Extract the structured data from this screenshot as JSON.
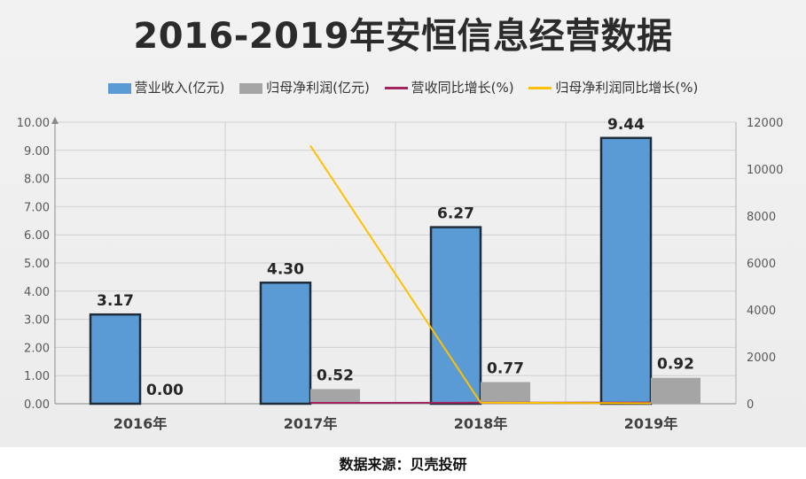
{
  "chart_data": {
    "type": "bar",
    "title": "2016-2019年安恒信息经营数据",
    "categories": [
      "2016年",
      "2017年",
      "2018年",
      "2019年"
    ],
    "series": [
      {
        "name": "营业收入(亿元)",
        "type": "bar",
        "axis": "left",
        "color": "#5b9bd5",
        "values": [
          3.17,
          4.3,
          6.27,
          9.44
        ],
        "labels": [
          "3.17",
          "4.30",
          "6.27",
          "9.44"
        ]
      },
      {
        "name": "归母净利润(亿元)",
        "type": "bar",
        "axis": "left",
        "color": "#a5a5a5",
        "values": [
          0.0,
          0.52,
          0.77,
          0.92
        ],
        "labels": [
          "0.00",
          "0.52",
          "0.77",
          "0.92"
        ]
      },
      {
        "name": "营收同比增长(%)",
        "type": "line",
        "axis": "right",
        "color": "#a0255f",
        "values": [
          null,
          36,
          46,
          51
        ]
      },
      {
        "name": "归母净利润同比增长(%)",
        "type": "line",
        "axis": "right",
        "color": "#ffc000",
        "values": [
          null,
          11000,
          48,
          19
        ]
      }
    ],
    "y_left": {
      "ylim": [
        0,
        10
      ],
      "ticks": [
        "0.00",
        "1.00",
        "2.00",
        "3.00",
        "4.00",
        "5.00",
        "6.00",
        "7.00",
        "8.00",
        "9.00",
        "10.00"
      ]
    },
    "y_right": {
      "ylim": [
        0,
        12000
      ],
      "ticks": [
        "0",
        "2000",
        "4000",
        "6000",
        "8000",
        "10000",
        "12000"
      ]
    },
    "grid": true,
    "legend_position": "top"
  },
  "source_text": "数据来源：贝壳投研"
}
